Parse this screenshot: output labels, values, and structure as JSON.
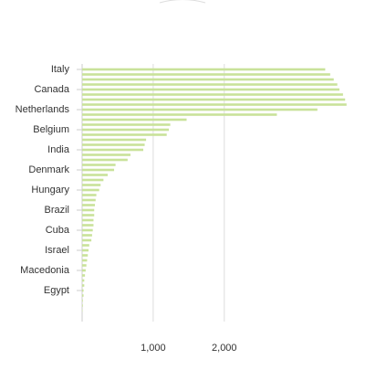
{
  "chart_data": {
    "type": "bar",
    "orientation": "horizontal",
    "color": "#c9e29a",
    "categories": [
      "Italy",
      null,
      null,
      null,
      "Canada",
      null,
      null,
      null,
      "Netherlands",
      null,
      null,
      null,
      "Belgium",
      null,
      null,
      null,
      "India",
      null,
      null,
      null,
      "Denmark",
      null,
      null,
      null,
      "Hungary",
      null,
      null,
      null,
      "Brazil",
      null,
      null,
      null,
      "Cuba",
      null,
      null,
      null,
      "Israel",
      null,
      null,
      null,
      "Macedonia",
      null,
      null,
      null,
      "Egypt",
      null,
      null,
      null,
      null
    ],
    "values": [
      3420,
      3490,
      3540,
      3590,
      3620,
      3670,
      3700,
      3720,
      3310,
      2740,
      1470,
      1240,
      1220,
      1190,
      900,
      880,
      860,
      680,
      640,
      470,
      450,
      360,
      300,
      260,
      240,
      200,
      190,
      180,
      170,
      170,
      160,
      160,
      150,
      140,
      130,
      100,
      90,
      80,
      70,
      60,
      50,
      40,
      30,
      30,
      20,
      20,
      10,
      10,
      5
    ],
    "xlim": [
      0,
      3800
    ],
    "xticks": [
      {
        "value": 1000,
        "label": "1,000"
      },
      {
        "value": 2000,
        "label": "2,000"
      }
    ],
    "grid": true
  }
}
